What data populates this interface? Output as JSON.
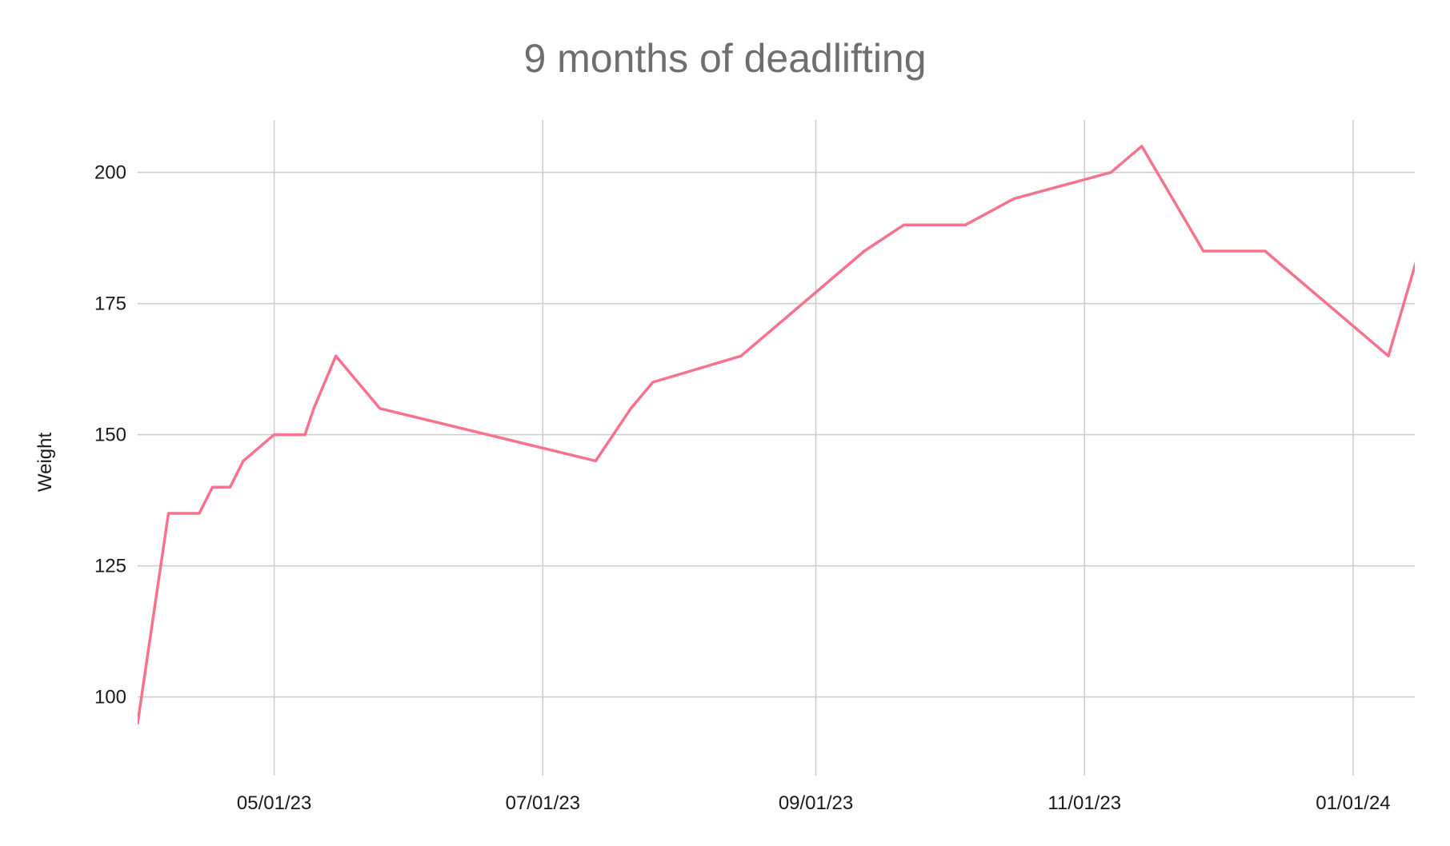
{
  "chart_data": {
    "type": "line",
    "title": "9 months of deadlifting",
    "xlabel": "",
    "ylabel": "Weight",
    "x_axis_type": "date",
    "x_tick_labels": [
      "05/01/23",
      "07/01/23",
      "09/01/23",
      "11/01/23",
      "01/01/24"
    ],
    "x_tick_dates": [
      "2023-05-01",
      "2023-07-01",
      "2023-09-01",
      "2023-11-01",
      "2024-01-01"
    ],
    "xlim": [
      "2023-03-31",
      "2024-01-15"
    ],
    "y_ticks": [
      100,
      125,
      150,
      175,
      200
    ],
    "ylim": [
      85,
      210
    ],
    "grid": true,
    "legend": false,
    "series": [
      {
        "color": "#f7728d",
        "points": [
          {
            "x": "2023-03-31",
            "y": 95
          },
          {
            "x": "2023-04-07",
            "y": 135
          },
          {
            "x": "2023-04-14",
            "y": 135
          },
          {
            "x": "2023-04-17",
            "y": 140
          },
          {
            "x": "2023-04-21",
            "y": 140
          },
          {
            "x": "2023-04-24",
            "y": 145
          },
          {
            "x": "2023-05-01",
            "y": 150
          },
          {
            "x": "2023-05-08",
            "y": 150
          },
          {
            "x": "2023-05-10",
            "y": 155
          },
          {
            "x": "2023-05-15",
            "y": 165
          },
          {
            "x": "2023-05-25",
            "y": 155
          },
          {
            "x": "2023-07-13",
            "y": 145
          },
          {
            "x": "2023-07-21",
            "y": 155
          },
          {
            "x": "2023-07-26",
            "y": 160
          },
          {
            "x": "2023-08-15",
            "y": 165
          },
          {
            "x": "2023-09-12",
            "y": 185
          },
          {
            "x": "2023-09-21",
            "y": 190
          },
          {
            "x": "2023-10-05",
            "y": 190
          },
          {
            "x": "2023-10-16",
            "y": 195
          },
          {
            "x": "2023-11-07",
            "y": 200
          },
          {
            "x": "2023-11-14",
            "y": 205
          },
          {
            "x": "2023-11-28",
            "y": 185
          },
          {
            "x": "2023-12-12",
            "y": 185
          },
          {
            "x": "2024-01-09",
            "y": 165
          },
          {
            "x": "2024-01-16",
            "y": 185
          }
        ]
      }
    ]
  }
}
